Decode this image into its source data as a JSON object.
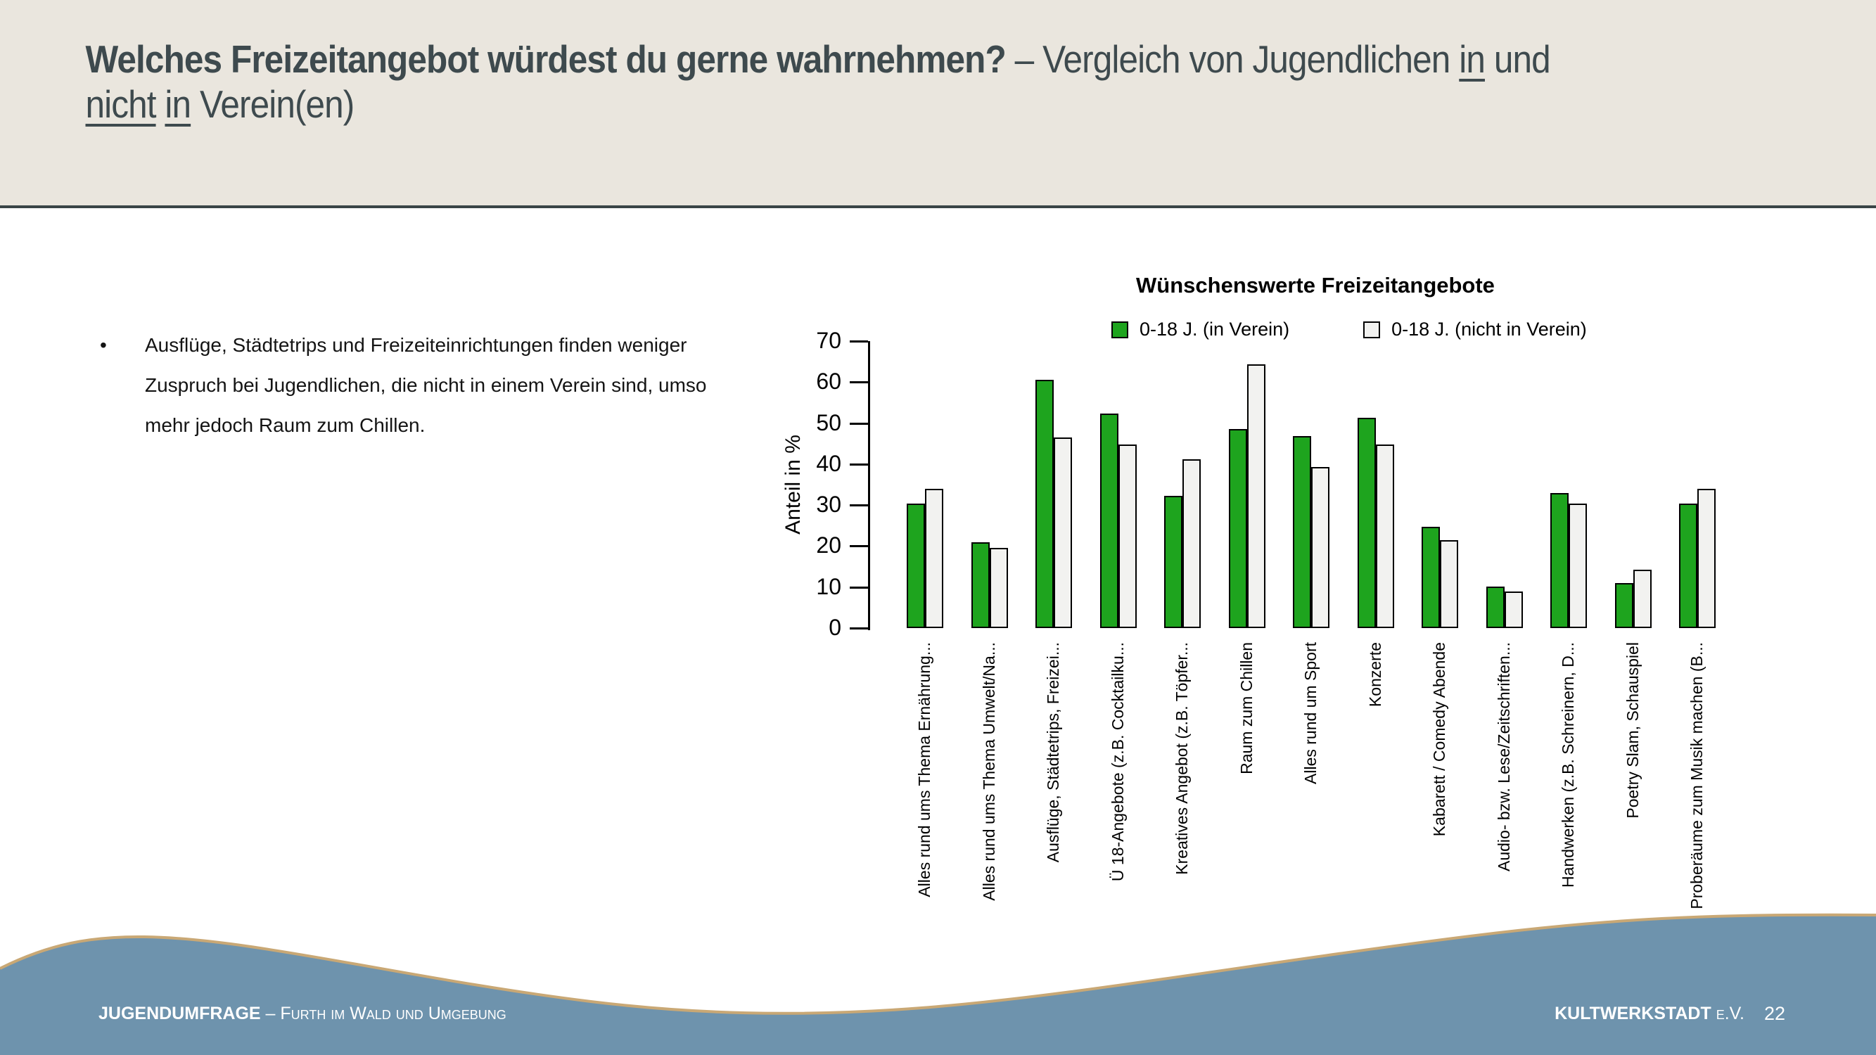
{
  "header": {
    "title_parts": [
      {
        "text": "Welches Freizeitangebot würdest du gerne wahrnehmen?",
        "bold": true
      },
      {
        "text": " – Vergleich von Jugendlichen "
      },
      {
        "text": "in",
        "underline": true
      },
      {
        "text": " und"
      },
      {
        "break": true
      },
      {
        "text": "nicht",
        "underline": true
      },
      {
        "text": " "
      },
      {
        "text": "in",
        "underline": true
      },
      {
        "text": " Verein(en)"
      }
    ]
  },
  "main": {
    "bullet_marker": "•",
    "bullet_text": "Ausflüge, Städtetrips und Freizeiteinrichtungen finden weniger Zuspruch bei Jugendlichen, die nicht in einem Verein sind, umso mehr jedoch Raum zum Chillen."
  },
  "chart_data": {
    "type": "bar",
    "title": "Wünschenswerte Freizeitangebote",
    "xlabel": "",
    "ylabel": "Anteil in %",
    "ylim": [
      0,
      70
    ],
    "yticks": [
      0,
      10,
      20,
      30,
      40,
      50,
      60,
      70
    ],
    "grid": false,
    "legend_position": "top",
    "categories": [
      "Alles rund ums Thema Ernährung...",
      "Alles rund ums Thema Umwelt/Na...",
      "Ausflüge, Städtetrips, Freizei...",
      "Ü 18-Angebote (z.B. Cocktailku...",
      "Kreatives Angebot (z.B. Töpfer...",
      "Raum zum Chillen",
      "Alles rund um Sport",
      "Konzerte",
      "Kabarett / Comedy Abende",
      "Audio- bzw. Lese/Zeitschriften...",
      "Handwerken (z.B. Schreinern, D...",
      "Poetry Slam, Schauspiel",
      "Proberäume zum Musik machen (B..."
    ],
    "series": [
      {
        "name": "0-18 J. (in Verein)",
        "color": "#1EA41E",
        "values": [
          30.3,
          21.0,
          60.5,
          52.3,
          32.2,
          48.6,
          46.8,
          51.3,
          24.7,
          10.1,
          33.0,
          11.0,
          30.3
        ]
      },
      {
        "name": "0-18 J. (nicht in Verein)",
        "color": "#F2F2F0",
        "values": [
          34.0,
          19.5,
          46.5,
          44.7,
          41.2,
          64.3,
          39.3,
          44.7,
          21.4,
          8.9,
          30.4,
          14.3,
          34.0
        ]
      }
    ]
  },
  "footer": {
    "left_bold": "JUGENDUMFRAGE",
    "left_sep": " – ",
    "left_text": "Furth im Wald und Umgebung",
    "right_bold": "KULTWERKSTADT",
    "right_text": " e.V.",
    "page_number": "22"
  },
  "colors": {
    "header_bg": "#EAE6DE",
    "header_text": "#3E4A4E",
    "divider": "#3A4547",
    "wave_fill": "#6E93AD",
    "wave_stroke": "#C9A875",
    "bar_border": "#000000",
    "bar_green": "#1EA41E",
    "bar_white": "#F2F2F0"
  }
}
